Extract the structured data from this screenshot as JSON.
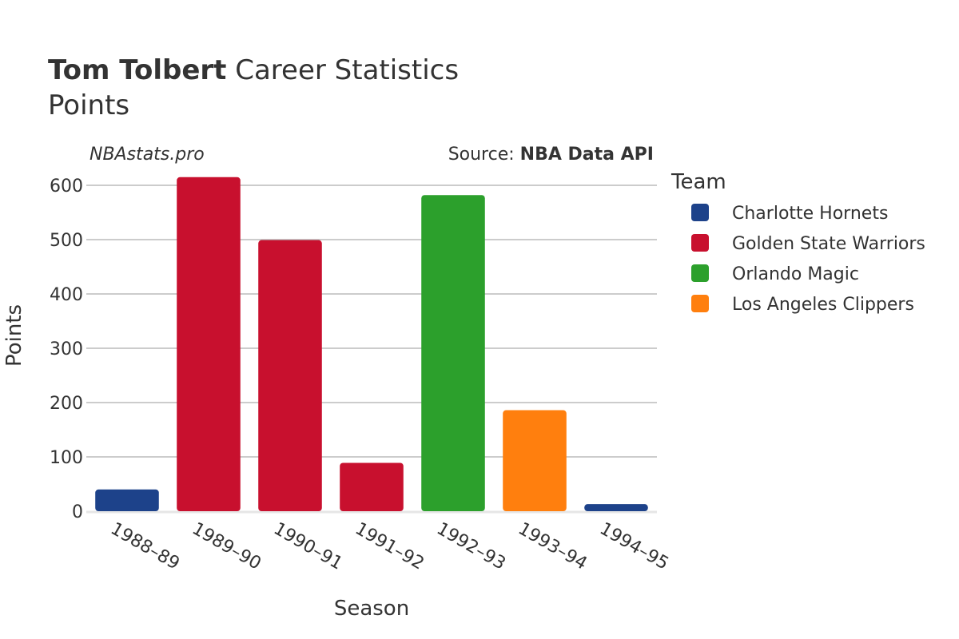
{
  "header": {
    "title_bold": "Tom Tolbert",
    "title_rest": " Career Statistics",
    "subtitle": "Points"
  },
  "watermark": "NBAstats.pro",
  "source": {
    "label": "Source: ",
    "name": "NBA Data API"
  },
  "legend": {
    "title": "Team",
    "items": [
      {
        "label": "Charlotte Hornets",
        "color": "#1d428a"
      },
      {
        "label": "Golden State Warriors",
        "color": "#c8102e"
      },
      {
        "label": "Orlando Magic",
        "color": "#2ca02c"
      },
      {
        "label": "Los Angeles Clippers",
        "color": "#ff7f0e"
      }
    ]
  },
  "chart_data": {
    "type": "bar",
    "title": "Tom Tolbert Career Statistics",
    "subtitle": "Points",
    "xlabel": "Season",
    "ylabel": "Points",
    "ylim": [
      0,
      640
    ],
    "yticks": [
      0,
      100,
      200,
      300,
      400,
      500,
      600
    ],
    "grid": true,
    "legend_position": "right",
    "categories": [
      "1988–89",
      "1989–90",
      "1990–91",
      "1991–92",
      "1992–93",
      "1993–94",
      "1994–95"
    ],
    "values": [
      40,
      615,
      499,
      89,
      582,
      186,
      13
    ],
    "teams": [
      "Charlotte Hornets",
      "Golden State Warriors",
      "Golden State Warriors",
      "Golden State Warriors",
      "Orlando Magic",
      "Los Angeles Clippers",
      "Charlotte Hornets"
    ]
  }
}
